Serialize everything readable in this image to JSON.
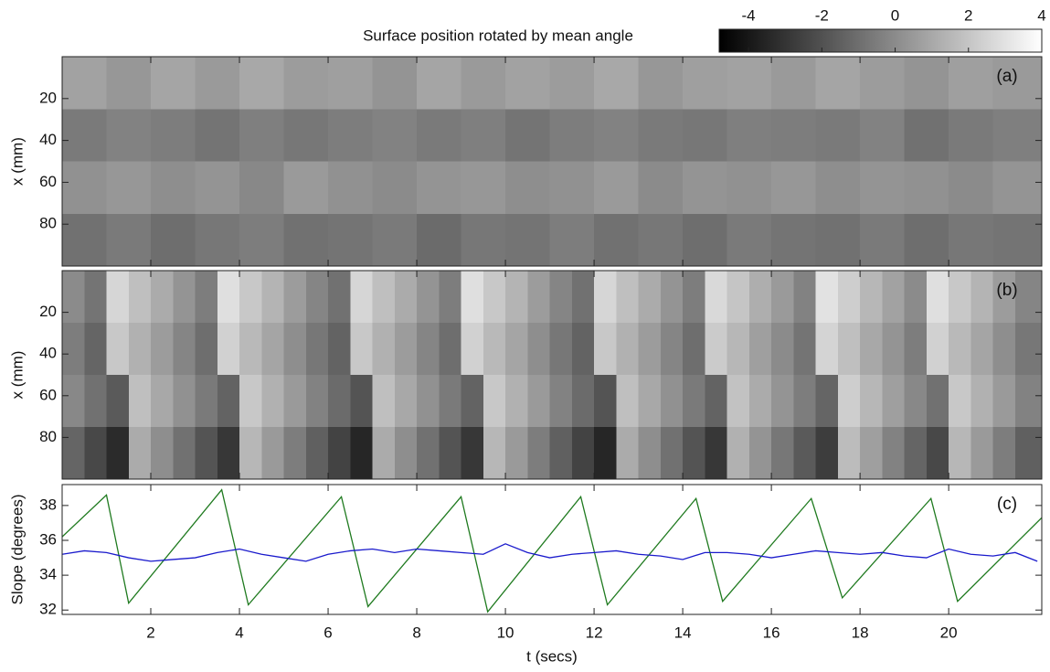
{
  "chart_data": [
    {
      "type": "heatmap",
      "title": "Surface position rotated by mean angle",
      "panel_label": "(a)",
      "y_label": "x (mm)",
      "xlim": [
        0,
        22.1
      ],
      "xticks": [
        2,
        4,
        6,
        8,
        10,
        12,
        14,
        16,
        18,
        20
      ],
      "ylim": [
        0,
        100
      ],
      "y_reversed": true,
      "yticks": [
        20,
        40,
        60,
        80
      ],
      "colorbar": {
        "lim": [
          -4.8,
          4
        ],
        "ticks": [
          -4,
          -2,
          0,
          2,
          4
        ]
      },
      "x": [
        0.5,
        1.5,
        2.5,
        3.5,
        4.5,
        5.5,
        6.5,
        7.5,
        8.5,
        9.5,
        10.5,
        11.5,
        12.5,
        13.5,
        14.5,
        15.5,
        16.5,
        17.5,
        18.5,
        19.5,
        20.5,
        21.5
      ],
      "y": [
        12.5,
        37.5,
        62.5,
        87.5
      ],
      "z": [
        [
          0.8,
          0.4,
          0.9,
          0.5,
          1.0,
          0.6,
          0.7,
          0.3,
          0.9,
          0.5,
          0.8,
          0.6,
          1.0,
          0.4,
          0.7,
          0.8,
          0.5,
          0.9,
          0.6,
          0.3,
          0.7,
          0.5
        ],
        [
          -0.6,
          -0.3,
          -0.5,
          -0.8,
          -0.4,
          -0.7,
          -0.5,
          -0.3,
          -0.6,
          -0.4,
          -0.8,
          -0.5,
          -0.3,
          -0.6,
          -0.7,
          -0.4,
          -0.5,
          -0.6,
          -0.3,
          -0.9,
          -0.6,
          -0.4
        ],
        [
          0.2,
          0.4,
          0.1,
          0.3,
          -0.1,
          0.5,
          0.2,
          0.0,
          0.3,
          0.4,
          0.1,
          0.2,
          0.5,
          0.0,
          0.3,
          0.2,
          0.4,
          0.1,
          0.3,
          0.2,
          0.0,
          0.3
        ],
        [
          -0.9,
          -0.6,
          -1.0,
          -0.7,
          -0.5,
          -0.9,
          -0.8,
          -0.6,
          -1.1,
          -0.7,
          -0.8,
          -0.5,
          -0.9,
          -0.7,
          -1.0,
          -0.6,
          -0.8,
          -0.9,
          -0.6,
          -1.0,
          -0.7,
          -0.8
        ]
      ]
    },
    {
      "type": "heatmap",
      "panel_label": "(b)",
      "y_label": "x (mm)",
      "xlim": [
        0,
        22.1
      ],
      "xticks": [
        2,
        4,
        6,
        8,
        10,
        12,
        14,
        16,
        18,
        20
      ],
      "ylim": [
        0,
        100
      ],
      "y_reversed": true,
      "yticks": [
        20,
        40,
        60,
        80
      ],
      "x": [
        0.25,
        0.75,
        1.25,
        1.75,
        2.25,
        2.75,
        3.25,
        3.75,
        4.25,
        4.75,
        5.25,
        5.75,
        6.25,
        6.75,
        7.25,
        7.75,
        8.25,
        8.75,
        9.25,
        9.75,
        10.25,
        10.75,
        11.25,
        11.75,
        12.25,
        12.75,
        13.25,
        13.75,
        14.25,
        14.75,
        15.25,
        15.75,
        16.25,
        16.75,
        17.25,
        17.75,
        18.25,
        18.75,
        19.25,
        19.75,
        20.25,
        20.75,
        21.25,
        21.75
      ],
      "y": [
        12.5,
        37.5,
        62.5,
        87.5
      ],
      "z": [
        [
          0.0,
          -0.8,
          2.6,
          1.8,
          1.1,
          0.3,
          -0.5,
          2.9,
          2.1,
          1.4,
          0.6,
          -0.2,
          -0.9,
          2.6,
          1.8,
          1.1,
          0.3,
          -0.5,
          2.9,
          2.1,
          1.4,
          0.6,
          -0.2,
          -0.9,
          2.6,
          1.8,
          1.1,
          0.3,
          -0.5,
          2.7,
          2.0,
          1.2,
          0.5,
          -0.3,
          3.0,
          2.3,
          1.5,
          0.8,
          0.0,
          2.9,
          2.1,
          1.4,
          0.6,
          -0.2
        ],
        [
          -0.5,
          -1.3,
          2.1,
          1.3,
          0.6,
          -0.2,
          -1.0,
          2.4,
          1.6,
          0.9,
          0.1,
          -0.7,
          -1.4,
          2.1,
          1.3,
          0.6,
          -0.2,
          -1.0,
          2.4,
          1.6,
          0.9,
          0.1,
          -0.7,
          -1.4,
          2.1,
          1.3,
          0.6,
          -0.2,
          -1.0,
          2.2,
          1.5,
          0.7,
          0.0,
          -0.8,
          2.5,
          1.8,
          1.0,
          0.3,
          -0.5,
          2.4,
          1.6,
          0.9,
          0.1,
          -0.7
        ],
        [
          -0.1,
          -0.9,
          -1.7,
          1.8,
          1.0,
          0.2,
          -0.6,
          -1.4,
          2.1,
          1.3,
          0.5,
          -0.3,
          -1.1,
          -1.9,
          1.8,
          1.0,
          0.2,
          -0.6,
          -1.4,
          2.1,
          1.3,
          0.5,
          -0.3,
          -1.1,
          -1.9,
          1.8,
          1.0,
          0.2,
          -0.6,
          -1.4,
          1.9,
          1.1,
          0.3,
          -0.5,
          -1.3,
          2.3,
          1.5,
          0.7,
          -0.1,
          -0.9,
          2.1,
          1.3,
          0.5,
          -0.3
        ],
        [
          -1.3,
          -2.3,
          -3.3,
          1.1,
          0.1,
          -0.9,
          -1.9,
          -2.9,
          1.5,
          0.5,
          -0.5,
          -1.5,
          -2.5,
          -3.5,
          1.1,
          0.1,
          -0.9,
          -1.9,
          -2.9,
          1.5,
          0.5,
          -0.5,
          -1.5,
          -2.5,
          -3.5,
          1.1,
          0.1,
          -0.9,
          -1.9,
          -2.9,
          1.3,
          0.3,
          -0.7,
          -1.7,
          -2.7,
          1.7,
          0.7,
          -0.3,
          -1.3,
          -2.3,
          1.5,
          0.5,
          -0.5,
          -1.5
        ]
      ]
    },
    {
      "type": "line",
      "panel_label": "(c)",
      "y_label": "Slope (degrees)",
      "x_label": "t (secs)",
      "xlim": [
        0,
        22.1
      ],
      "xticks": [
        2,
        4,
        6,
        8,
        10,
        12,
        14,
        16,
        18,
        20
      ],
      "ylim": [
        31.75,
        39.2
      ],
      "yticks": [
        32,
        34,
        36,
        38
      ],
      "series": [
        {
          "color": "#1f7a1f",
          "x": [
            0,
            1.0,
            1.5,
            3.6,
            4.2,
            6.3,
            6.9,
            9.0,
            9.6,
            11.7,
            12.3,
            14.3,
            14.9,
            16.9,
            17.6,
            19.6,
            20.2,
            22.1
          ],
          "values": [
            36.2,
            38.6,
            32.4,
            38.9,
            32.3,
            38.5,
            32.2,
            38.5,
            31.9,
            38.5,
            32.3,
            38.4,
            32.5,
            38.4,
            32.7,
            38.4,
            32.5,
            37.3
          ]
        },
        {
          "color": "#1a1acc",
          "x": [
            0,
            0.5,
            1,
            1.5,
            2,
            2.5,
            3,
            3.5,
            4,
            4.5,
            5,
            5.5,
            6,
            6.5,
            7,
            7.5,
            8,
            8.5,
            9,
            9.5,
            10,
            10.5,
            11,
            11.5,
            12,
            12.5,
            13,
            13.5,
            14,
            14.5,
            15,
            15.5,
            16,
            16.5,
            17,
            17.5,
            18,
            18.5,
            19,
            19.5,
            20,
            20.5,
            21,
            21.5,
            22
          ],
          "values": [
            35.2,
            35.4,
            35.3,
            35.0,
            34.8,
            34.9,
            35.0,
            35.3,
            35.5,
            35.2,
            35.0,
            34.8,
            35.2,
            35.4,
            35.5,
            35.3,
            35.5,
            35.4,
            35.3,
            35.2,
            35.8,
            35.3,
            35.0,
            35.2,
            35.3,
            35.4,
            35.2,
            35.1,
            34.9,
            35.3,
            35.3,
            35.2,
            35.0,
            35.2,
            35.4,
            35.3,
            35.2,
            35.3,
            35.1,
            35.0,
            35.5,
            35.2,
            35.1,
            35.3,
            34.8
          ]
        }
      ]
    }
  ]
}
